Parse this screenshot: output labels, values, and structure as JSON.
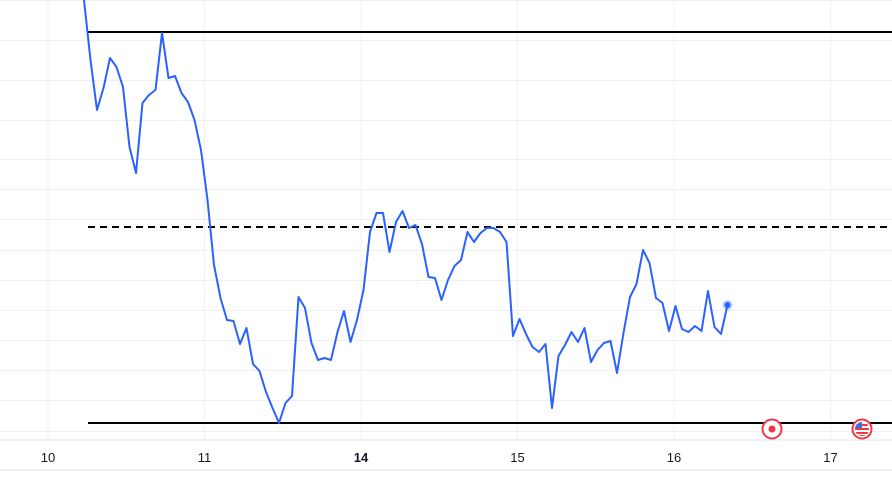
{
  "chart_data": {
    "type": "line",
    "x_tick_labels": [
      {
        "label": "10",
        "bold": false
      },
      {
        "label": "11",
        "bold": false
      },
      {
        "label": "14",
        "bold": true
      },
      {
        "label": "15",
        "bold": false
      },
      {
        "label": "16",
        "bold": false
      },
      {
        "label": "17",
        "bold": false
      }
    ],
    "series": [
      {
        "color": "#2962ff",
        "values": [
          423,
          363,
          313,
          335,
          365,
          356,
          336,
          276,
          250,
          320,
          328,
          333,
          390,
          345,
          347,
          330,
          321,
          303,
          273,
          223,
          158,
          125,
          103,
          102,
          79,
          95,
          59,
          52,
          31,
          15,
          0,
          20,
          27,
          126,
          115,
          80,
          63,
          65,
          63,
          91,
          112,
          81,
          103,
          133,
          191,
          210,
          210,
          171,
          201,
          212,
          195,
          198,
          179,
          146,
          145,
          123,
          143,
          157,
          163,
          191,
          181,
          190,
          195,
          195,
          191,
          181,
          87,
          104,
          89,
          76,
          71,
          79,
          15,
          67,
          78,
          91,
          81,
          95,
          61,
          73,
          80,
          82,
          50,
          90,
          126,
          139,
          173,
          160,
          125,
          120,
          92,
          117,
          94,
          91,
          97,
          92,
          132,
          96,
          89,
          118
        ]
      }
    ],
    "horizontal_levels": [
      {
        "value": 391,
        "style": "solid",
        "color": "#000000"
      },
      {
        "value": 196,
        "style": "dashed",
        "color": "#000000"
      },
      {
        "value": 0,
        "style": "solid",
        "color": "#000000"
      }
    ],
    "grid": true,
    "event_markers": [
      {
        "icon": "red-dot-event-icon",
        "color": "#f23645"
      },
      {
        "icon": "us-flag-icon",
        "color": "#f23645"
      }
    ]
  }
}
